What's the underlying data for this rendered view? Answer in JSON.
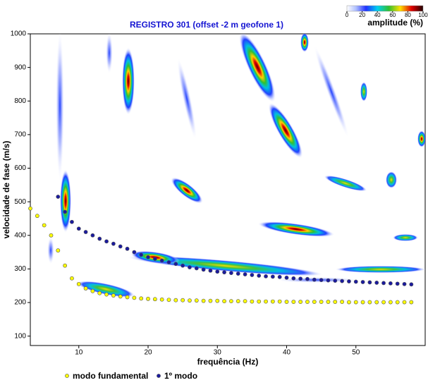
{
  "chart_data": {
    "type": "scatter",
    "title": "REGISTRO 301  (offset -2 m geofone 1)",
    "x_label": "frequência (Hz)",
    "y_label": "velocidade de fase (m/s)",
    "xlim": [
      3,
      60
    ],
    "xticks": [
      10,
      20,
      30,
      40,
      50
    ],
    "ylim": [
      72,
      1000
    ],
    "yticks": [
      100,
      200,
      300,
      400,
      500,
      600,
      700,
      800,
      900,
      1000
    ],
    "grid": false,
    "colorbar": {
      "label": "amplitude (%)",
      "ticks": [
        0,
        20,
        40,
        60,
        80,
        100
      ]
    },
    "series": [
      {
        "name": "modo fundamental",
        "color": "#ffff00",
        "x": [
          3,
          4,
          5,
          6,
          7,
          8,
          9,
          10,
          11,
          12,
          13,
          14,
          15,
          16,
          17,
          18,
          19,
          20,
          21,
          22,
          23,
          24,
          25,
          26,
          27,
          28,
          29,
          30,
          31,
          32,
          33,
          34,
          35,
          36,
          37,
          38,
          39,
          40,
          41,
          42,
          43,
          44,
          45,
          46,
          47,
          48,
          49,
          50,
          51,
          52,
          53,
          54,
          55,
          56,
          57,
          58
        ],
        "values": [
          480,
          458,
          430,
          400,
          355,
          310,
          272,
          255,
          242,
          234,
          228,
          224,
          221,
          218,
          216,
          214,
          212,
          211,
          210,
          209,
          208,
          207,
          207,
          206,
          206,
          205,
          205,
          205,
          204,
          204,
          204,
          204,
          203,
          203,
          203,
          203,
          203,
          202,
          202,
          202,
          202,
          202,
          202,
          202,
          202,
          202,
          201,
          201,
          201,
          201,
          201,
          201,
          201,
          201,
          201,
          201
        ]
      },
      {
        "name": "1º modo",
        "color": "#1a1a9e",
        "x": [
          7,
          8,
          9,
          10,
          11,
          12,
          13,
          14,
          15,
          16,
          17,
          18,
          19,
          20,
          21,
          22,
          23,
          24,
          25,
          26,
          27,
          28,
          29,
          30,
          31,
          32,
          33,
          34,
          35,
          36,
          37,
          38,
          39,
          40,
          41,
          42,
          43,
          44,
          45,
          46,
          47,
          48,
          49,
          50,
          51,
          52,
          53,
          54,
          55,
          56,
          57,
          58
        ],
        "values": [
          515,
          470,
          440,
          420,
          410,
          400,
          390,
          382,
          375,
          367,
          360,
          350,
          342,
          335,
          330,
          325,
          320,
          315,
          310,
          305,
          302,
          298,
          295,
          292,
          290,
          288,
          286,
          284,
          282,
          280,
          278,
          277,
          276,
          274,
          272,
          271,
          270,
          268,
          267,
          266,
          265,
          264,
          263,
          262,
          261,
          260,
          259,
          258,
          257,
          256,
          255,
          254
        ]
      }
    ]
  }
}
